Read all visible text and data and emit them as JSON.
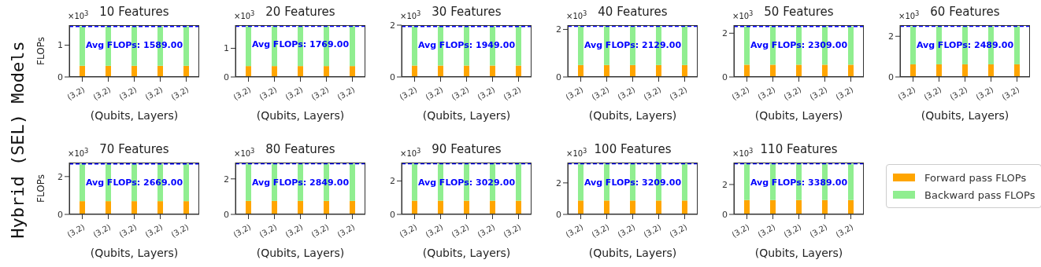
{
  "chart_data": [
    {
      "type": "bar",
      "title": "10 Features",
      "xlabel": "(Qubits, Layers)",
      "ylabel": "FLOPs",
      "categories": [
        "(3,2)",
        "(3,2)",
        "(3,2)",
        "(3,2)",
        "(3,2)"
      ],
      "stacked": true,
      "series": [
        {
          "color": "#ffa500",
          "values": [
            0.35,
            0.35,
            0.35,
            0.35,
            0.35
          ]
        },
        {
          "color": "#90ee90",
          "values": [
            1.24,
            1.24,
            1.24,
            1.24,
            1.24
          ]
        }
      ],
      "ylim": [
        0,
        1.63
      ],
      "yticks": [
        0,
        1
      ],
      "ref_lines": [
        {
          "axis": "y",
          "value": 1.589,
          "label": "Avg FLOPs: 1589.00",
          "color": "#0000ff",
          "line_style": "dashed"
        }
      ],
      "annotations": [
        "×10$^{3}$",
        "Hybrid (SEL) Models"
      ]
    },
    {
      "type": "bar",
      "title": "20 Features",
      "xlabel": "(Qubits, Layers)",
      "categories": [
        "(3,2)",
        "(3,2)",
        "(3,2)",
        "(3,2)",
        "(3,2)"
      ],
      "stacked": true,
      "series": [
        {
          "color": "#ffa500",
          "values": [
            0.38,
            0.38,
            0.38,
            0.38,
            0.38
          ]
        },
        {
          "color": "#90ee90",
          "values": [
            1.39,
            1.39,
            1.39,
            1.39,
            1.39
          ]
        }
      ],
      "ylim": [
        0,
        1.81
      ],
      "yticks": [
        0,
        1
      ],
      "ref_lines": [
        {
          "axis": "y",
          "value": 1.769,
          "label": "Avg FLOPs: 1769.00",
          "color": "#0000ff",
          "line_style": "dashed"
        }
      ],
      "annotations": [
        "×10$^{3}$"
      ]
    },
    {
      "type": "bar",
      "title": "30 Features",
      "xlabel": "(Qubits, Layers)",
      "categories": [
        "(3,2)",
        "(3,2)",
        "(3,2)",
        "(3,2)",
        "(3,2)"
      ],
      "stacked": true,
      "series": [
        {
          "color": "#ffa500",
          "values": [
            0.44,
            0.44,
            0.44,
            0.44,
            0.44
          ]
        },
        {
          "color": "#90ee90",
          "values": [
            1.51,
            1.51,
            1.51,
            1.51,
            1.51
          ]
        }
      ],
      "ylim": [
        0,
        2
      ],
      "yticks": [
        0,
        2
      ],
      "ref_lines": [
        {
          "axis": "y",
          "value": 1.949,
          "label": "Avg FLOPs: 1949.00",
          "color": "#0000ff",
          "line_style": "dashed"
        }
      ],
      "annotations": [
        "×10$^{3}$"
      ]
    },
    {
      "type": "bar",
      "title": "40 Features",
      "xlabel": "(Qubits, Layers)",
      "categories": [
        "(3,2)",
        "(3,2)",
        "(3,2)",
        "(3,2)",
        "(3,2)"
      ],
      "stacked": true,
      "series": [
        {
          "color": "#ffa500",
          "values": [
            0.5,
            0.5,
            0.5,
            0.5,
            0.5
          ]
        },
        {
          "color": "#90ee90",
          "values": [
            1.63,
            1.63,
            1.63,
            1.63,
            1.63
          ]
        }
      ],
      "ylim": [
        0,
        2.18
      ],
      "yticks": [
        0,
        2
      ],
      "ref_lines": [
        {
          "axis": "y",
          "value": 2.129,
          "label": "Avg FLOPs: 2129.00",
          "color": "#0000ff",
          "line_style": "dashed"
        }
      ],
      "annotations": [
        "×10$^{3}$"
      ]
    },
    {
      "type": "bar",
      "title": "50 Features",
      "xlabel": "(Qubits, Layers)",
      "categories": [
        "(3,2)",
        "(3,2)",
        "(3,2)",
        "(3,2)",
        "(3,2)"
      ],
      "stacked": true,
      "series": [
        {
          "color": "#ffa500",
          "values": [
            0.56,
            0.56,
            0.56,
            0.56,
            0.56
          ]
        },
        {
          "color": "#90ee90",
          "values": [
            1.75,
            1.75,
            1.75,
            1.75,
            1.75
          ]
        }
      ],
      "ylim": [
        0,
        2.37
      ],
      "yticks": [
        0,
        2
      ],
      "ref_lines": [
        {
          "axis": "y",
          "value": 2.309,
          "label": "Avg FLOPs: 2309.00",
          "color": "#0000ff",
          "line_style": "dashed"
        }
      ],
      "annotations": [
        "×10$^{3}$"
      ]
    },
    {
      "type": "bar",
      "title": "60 Features",
      "xlabel": "(Qubits, Layers)",
      "categories": [
        "(3,2)",
        "(3,2)",
        "(3,2)",
        "(3,2)",
        "(3,2)"
      ],
      "stacked": true,
      "series": [
        {
          "color": "#ffa500",
          "values": [
            0.62,
            0.62,
            0.62,
            0.62,
            0.62
          ]
        },
        {
          "color": "#90ee90",
          "values": [
            1.87,
            1.87,
            1.87,
            1.87,
            1.87
          ]
        }
      ],
      "ylim": [
        0,
        2.55
      ],
      "yticks": [
        0,
        2
      ],
      "ref_lines": [
        {
          "axis": "y",
          "value": 2.489,
          "label": "Avg FLOPs: 2489.00",
          "color": "#0000ff",
          "line_style": "dashed"
        }
      ],
      "annotations": [
        "×10$^{3}$"
      ]
    },
    {
      "type": "bar",
      "title": "70 Features",
      "xlabel": "(Qubits, Layers)",
      "ylabel": "FLOPs",
      "categories": [
        "(3,2)",
        "(3,2)",
        "(3,2)",
        "(3,2)",
        "(3,2)"
      ],
      "stacked": true,
      "series": [
        {
          "color": "#ffa500",
          "values": [
            0.7,
            0.7,
            0.7,
            0.7,
            0.7
          ]
        },
        {
          "color": "#90ee90",
          "values": [
            1.97,
            1.97,
            1.97,
            1.97,
            1.97
          ]
        }
      ],
      "ylim": [
        0,
        2.74
      ],
      "yticks": [
        0,
        2
      ],
      "ref_lines": [
        {
          "axis": "y",
          "value": 2.669,
          "label": "Avg FLOPs: 2669.00",
          "color": "#0000ff",
          "line_style": "dashed"
        }
      ],
      "annotations": [
        "×10$^{3}$"
      ]
    },
    {
      "type": "bar",
      "title": "80 Features",
      "xlabel": "(Qubits, Layers)",
      "categories": [
        "(3,2)",
        "(3,2)",
        "(3,2)",
        "(3,2)",
        "(3,2)"
      ],
      "stacked": true,
      "series": [
        {
          "color": "#ffa500",
          "values": [
            0.76,
            0.76,
            0.76,
            0.76,
            0.76
          ]
        },
        {
          "color": "#90ee90",
          "values": [
            2.09,
            2.09,
            2.09,
            2.09,
            2.09
          ]
        }
      ],
      "ylim": [
        0,
        2.92
      ],
      "yticks": [
        0,
        2
      ],
      "ref_lines": [
        {
          "axis": "y",
          "value": 2.849,
          "label": "Avg FLOPs: 2849.00",
          "color": "#0000ff",
          "line_style": "dashed"
        }
      ],
      "annotations": [
        "×10$^{3}$"
      ]
    },
    {
      "type": "bar",
      "title": "90 Features",
      "xlabel": "(Qubits, Layers)",
      "categories": [
        "(3,2)",
        "(3,2)",
        "(3,2)",
        "(3,2)",
        "(3,2)"
      ],
      "stacked": true,
      "series": [
        {
          "color": "#ffa500",
          "values": [
            0.82,
            0.82,
            0.82,
            0.82,
            0.82
          ]
        },
        {
          "color": "#90ee90",
          "values": [
            2.21,
            2.21,
            2.21,
            2.21,
            2.21
          ]
        }
      ],
      "ylim": [
        0,
        3.1
      ],
      "yticks": [
        0,
        2
      ],
      "ref_lines": [
        {
          "axis": "y",
          "value": 3.029,
          "label": "Avg FLOPs: 3029.00",
          "color": "#0000ff",
          "line_style": "dashed"
        }
      ],
      "annotations": [
        "×10$^{3}$"
      ]
    },
    {
      "type": "bar",
      "title": "100 Features",
      "xlabel": "(Qubits, Layers)",
      "categories": [
        "(3,2)",
        "(3,2)",
        "(3,2)",
        "(3,2)",
        "(3,2)"
      ],
      "stacked": true,
      "series": [
        {
          "color": "#ffa500",
          "values": [
            0.88,
            0.88,
            0.88,
            0.88,
            0.88
          ]
        },
        {
          "color": "#90ee90",
          "values": [
            2.33,
            2.33,
            2.33,
            2.33,
            2.33
          ]
        }
      ],
      "ylim": [
        0,
        3.29
      ],
      "yticks": [
        0,
        2
      ],
      "ref_lines": [
        {
          "axis": "y",
          "value": 3.209,
          "label": "Avg FLOPs: 3209.00",
          "color": "#0000ff",
          "line_style": "dashed"
        }
      ],
      "annotations": [
        "×10$^{3}$"
      ]
    },
    {
      "type": "bar",
      "title": "110 Features",
      "xlabel": "(Qubits, Layers)",
      "categories": [
        "(3,2)",
        "(3,2)",
        "(3,2)",
        "(3,2)",
        "(3,2)"
      ],
      "stacked": true,
      "series": [
        {
          "name": "Forward pass FLOPs",
          "color": "#ffa500",
          "values": [
            0.96,
            0.96,
            0.96,
            0.96,
            0.96
          ]
        },
        {
          "name": "Backward pass FLOPs",
          "color": "#90ee90",
          "values": [
            2.43,
            2.43,
            2.43,
            2.43,
            2.43
          ]
        }
      ],
      "ylim": [
        0,
        3.47
      ],
      "yticks": [
        0,
        2
      ],
      "ref_lines": [
        {
          "axis": "y",
          "value": 3.389,
          "label": "Avg FLOPs: 3389.00",
          "color": "#0000ff",
          "line_style": "dashed"
        }
      ],
      "annotations": [
        "×10$^{3}$"
      ],
      "legend": "right"
    }
  ]
}
